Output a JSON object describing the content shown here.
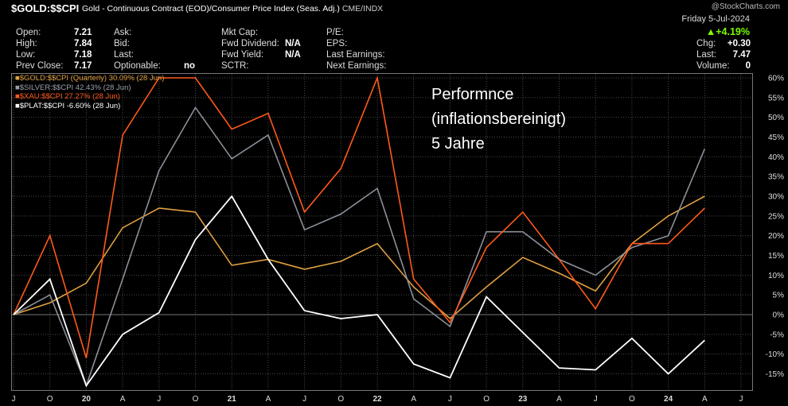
{
  "header": {
    "symbol": "$GOLD:$$CPI",
    "description": "Gold - Continuous Contract (EOD)/Consumer Price Index (Seas. Adj.)",
    "exchange": "CME/INDX",
    "watermark": "@StockCharts.com",
    "date": "Friday  5-Jul-2024",
    "change_pct": "▲+4.19%",
    "col1": [
      {
        "label": "Open:",
        "value": "7.21"
      },
      {
        "label": "High:",
        "value": "7.84"
      },
      {
        "label": "Low:",
        "value": "7.18"
      },
      {
        "label": "Prev Close:",
        "value": "7.17"
      }
    ],
    "col2": [
      {
        "label": "Ask:",
        "value": ""
      },
      {
        "label": "Bid:",
        "value": ""
      },
      {
        "label": "Last:",
        "value": ""
      },
      {
        "label": "Optionable:",
        "value": "no"
      }
    ],
    "col3": [
      {
        "label": "Mkt Cap:",
        "value": ""
      },
      {
        "label": "Fwd Dividend:",
        "value": "N/A"
      },
      {
        "label": "Fwd Yield:",
        "value": "N/A"
      },
      {
        "label": "SCTR:",
        "value": ""
      }
    ],
    "col4": [
      {
        "label": "P/E:",
        "value": ""
      },
      {
        "label": "EPS:",
        "value": ""
      },
      {
        "label": "Last Earnings:",
        "value": ""
      },
      {
        "label": "Next Earnings:",
        "value": ""
      }
    ],
    "col5": [
      {
        "label": "Chg:",
        "value": "+0.30"
      },
      {
        "label": "Last:",
        "value": "7.47"
      },
      {
        "label": "Volume:",
        "value": "0"
      }
    ]
  },
  "annotation": [
    "Performnce",
    "(inflationsbereinigt)",
    "5 Jahre"
  ],
  "colors": {
    "gold": "#e0a040",
    "silver": "#8a9099",
    "xau": "#ff5a1a",
    "plat": "#ffffff",
    "grid": "#4a4a4a"
  },
  "chart_data": {
    "type": "line",
    "x_ticks": [
      "J",
      "O",
      "20",
      "A",
      "J",
      "O",
      "21",
      "A",
      "J",
      "O",
      "22",
      "A",
      "J",
      "O",
      "23",
      "A",
      "J",
      "O",
      "24",
      "A",
      "J"
    ],
    "y_ticks": [
      "60%",
      "55%",
      "50%",
      "45%",
      "40%",
      "35%",
      "30%",
      "25%",
      "20%",
      "15%",
      "10%",
      "5%",
      "0%",
      "-5%",
      "-10%",
      "-15%"
    ],
    "ylim": [
      -20,
      60
    ],
    "grid": true,
    "legend_position": "top-left",
    "series": [
      {
        "name": "$GOLD:$$CPI (Quarterly) 30.09% (28 Jun)",
        "color": "#e0a040",
        "values": [
          0,
          3,
          8,
          22,
          27,
          26,
          12.5,
          14,
          11.5,
          13.5,
          18,
          7,
          -1,
          7,
          14.5,
          10.5,
          6,
          18,
          25,
          30
        ]
      },
      {
        "name": "$SILVER:$$CPI 42.43% (28 Jun)",
        "color": "#8a9099",
        "values": [
          0,
          5,
          -18,
          9,
          36.5,
          52.5,
          39.5,
          45.5,
          21.5,
          25.5,
          32,
          4,
          -3,
          21,
          21,
          14,
          10,
          17,
          20,
          42
        ]
      },
      {
        "name": "$XAU:$$CPI 27.27% (28 Jun)",
        "color": "#ff5a1a",
        "values": [
          0,
          20,
          -11,
          45.5,
          60,
          60,
          47,
          51,
          26,
          37,
          60,
          9,
          -2,
          17,
          26,
          14,
          1.5,
          18,
          18,
          27
        ]
      },
      {
        "name": "$PLAT:$$CPI -6.60% (28 Jun)",
        "color": "#ffffff",
        "values": [
          0,
          9,
          -18,
          -5,
          0.5,
          19,
          30,
          14,
          1,
          -1,
          0,
          -12.5,
          -16,
          4.5,
          -4.5,
          -13.5,
          -14,
          -6,
          -15,
          -6.5
        ]
      }
    ]
  }
}
